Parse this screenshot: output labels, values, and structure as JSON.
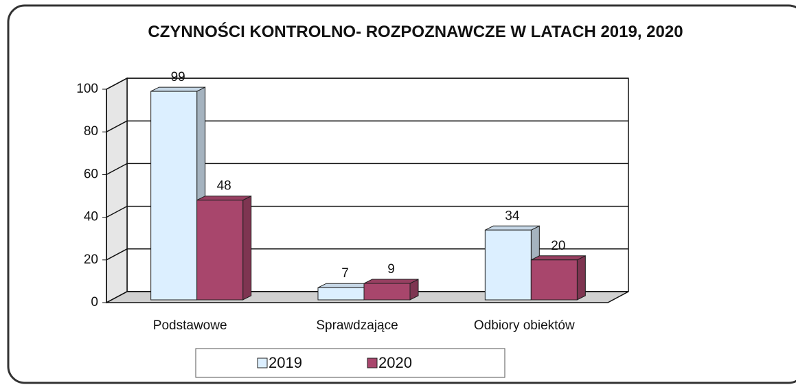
{
  "chart_data": {
    "type": "bar3d",
    "title": "CZYNNOŚCI KONTROLNO- ROZPOZNAWCZE W LATACH 2019, 2020",
    "categories": [
      "Podstawowe",
      "Sprawdzające",
      "Odbiory obiektów"
    ],
    "series": [
      {
        "name": "2019",
        "color": "#dcefff",
        "values": [
          99,
          7,
          34
        ]
      },
      {
        "name": "2020",
        "color": "#a8466c",
        "values": [
          48,
          9,
          20
        ]
      }
    ],
    "ylim": [
      0,
      100
    ],
    "yticks": [
      0,
      20,
      40,
      60,
      80,
      100
    ],
    "grid": true,
    "legend": "bottom"
  }
}
